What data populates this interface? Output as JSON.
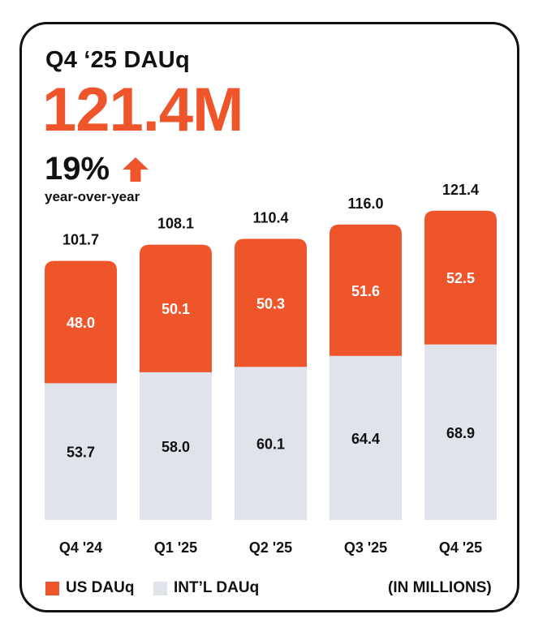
{
  "header": {
    "title": "Q4 ‘25 DAUq",
    "value": "121.4M",
    "yoy_percent": "19%",
    "yoy_label": "year-over-year",
    "yoy_arrow_icon": "arrow-up-icon"
  },
  "colors": {
    "us": "#EE552A",
    "intl": "#E0E3E9",
    "accent": "#EE552A",
    "text": "#111111",
    "label_on_bar": "#ffffff"
  },
  "chart_data": {
    "type": "bar",
    "stacked": true,
    "categories": [
      "Q4 '24",
      "Q1 '25",
      "Q2 '25",
      "Q3 '25",
      "Q4 '25"
    ],
    "series": [
      {
        "name": "INT’L DAUq",
        "values": [
          53.7,
          58.0,
          60.1,
          64.4,
          68.9
        ],
        "labels": [
          "53.7",
          "58.0",
          "60.1",
          "64.4",
          "68.9"
        ]
      },
      {
        "name": "US DAUq",
        "values": [
          48.0,
          50.1,
          50.3,
          51.6,
          52.5
        ],
        "labels": [
          "48.0",
          "50.1",
          "50.3",
          "51.6",
          "52.5"
        ]
      }
    ],
    "totals": [
      101.7,
      108.1,
      110.4,
      116.0,
      121.4
    ],
    "total_labels": [
      "101.7",
      "108.1",
      "110.4",
      "116.0",
      "121.4"
    ],
    "units_note": "(IN MILLIONS)",
    "legend": [
      "US DAUq",
      "INT’L DAUq"
    ]
  }
}
